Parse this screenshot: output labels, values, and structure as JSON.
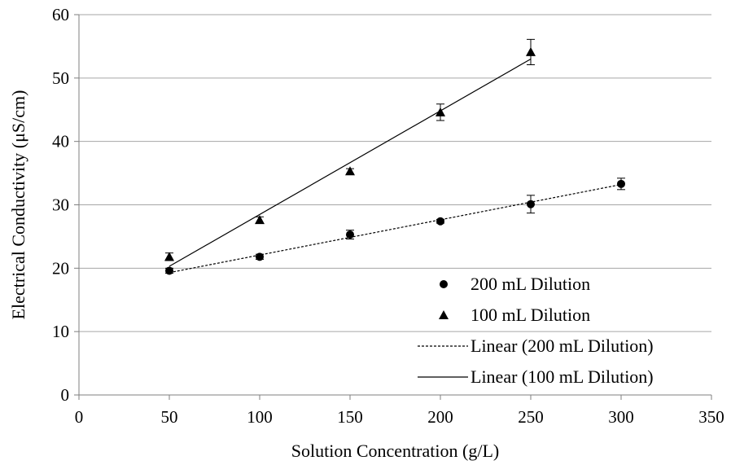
{
  "chart_data": {
    "type": "scatter",
    "title": "",
    "xlabel": "Solution Concentration (g/L)",
    "ylabel": "Electrical Conductivity (μS/cm)",
    "xlim": [
      0,
      350
    ],
    "ylim": [
      0,
      60
    ],
    "xticks": [
      "0",
      "50",
      "100",
      "150",
      "200",
      "250",
      "300",
      "350"
    ],
    "yticks": [
      "0",
      "10",
      "20",
      "30",
      "40",
      "50",
      "60"
    ],
    "grid": "horizontal",
    "legend_position": "bottom-right",
    "series": [
      {
        "name": "200 mL Dilution",
        "marker": "circle",
        "color": "#000000",
        "points": [
          {
            "x": 50,
            "y": 19.6,
            "err": 0.4
          },
          {
            "x": 100,
            "y": 21.8,
            "err": 0.4
          },
          {
            "x": 150,
            "y": 25.3,
            "err": 0.7
          },
          {
            "x": 200,
            "y": 27.4,
            "err": 0.3
          },
          {
            "x": 250,
            "y": 30.1,
            "err": 1.4
          },
          {
            "x": 300,
            "y": 33.3,
            "err": 0.9
          }
        ]
      },
      {
        "name": "100 mL Dilution",
        "marker": "triangle",
        "color": "#000000",
        "points": [
          {
            "x": 50,
            "y": 21.8,
            "err": 0.6
          },
          {
            "x": 100,
            "y": 27.6,
            "err": 0.5
          },
          {
            "x": 150,
            "y": 35.3,
            "err": 0.4
          },
          {
            "x": 200,
            "y": 44.6,
            "err": 1.3
          },
          {
            "x": 250,
            "y": 54.1,
            "err": 2.0
          }
        ]
      }
    ],
    "trendlines": [
      {
        "name": "Linear (200 mL Dilution)",
        "style": "dashed",
        "x": [
          50,
          300
        ],
        "y": [
          19.3,
          33.2
        ]
      },
      {
        "name": "Linear (100 mL Dilution)",
        "style": "solid",
        "x": [
          50,
          250
        ],
        "y": [
          20.3,
          53.0
        ]
      }
    ]
  }
}
